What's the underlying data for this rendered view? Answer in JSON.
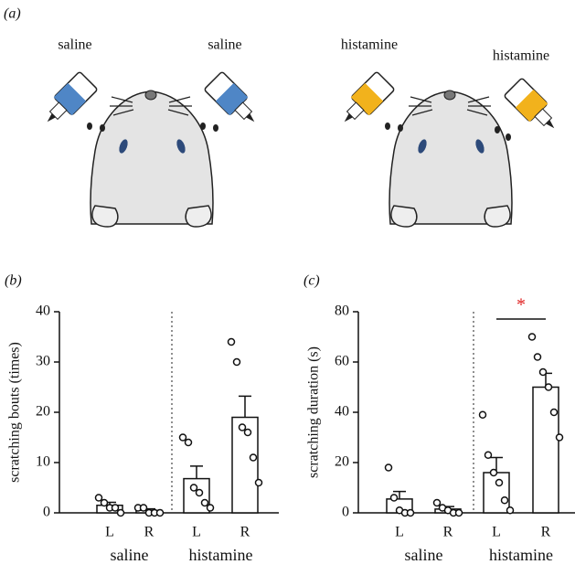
{
  "panel_a": {
    "label": "(a)",
    "labels": [
      "saline",
      "saline",
      "histamine",
      "histamine"
    ]
  },
  "chart_data": [
    {
      "type": "bar",
      "panel": "(b)",
      "ylabel": "scratching bouts (times)",
      "categories": [
        "L",
        "R",
        "L",
        "R"
      ],
      "groups": [
        "saline",
        "histamine"
      ],
      "values": [
        1.5,
        0.5,
        6.8,
        19
      ],
      "errors": [
        0.6,
        0.3,
        2.5,
        4.2
      ],
      "points": [
        [
          3,
          2,
          1,
          1,
          0
        ],
        [
          1,
          1,
          0,
          0,
          0
        ],
        [
          15,
          14,
          5,
          4,
          2,
          1
        ],
        [
          34,
          30,
          17,
          16,
          11,
          6
        ]
      ],
      "ylim": [
        0,
        40
      ],
      "yticks": [
        0,
        10,
        20,
        30,
        40
      ],
      "color": "#ffffff"
    },
    {
      "type": "bar",
      "panel": "(c)",
      "ylabel": "scratching duration (s)",
      "categories": [
        "L",
        "R",
        "L",
        "R"
      ],
      "groups": [
        "saline",
        "histamine"
      ],
      "values": [
        5.5,
        1.5,
        16,
        50
      ],
      "errors": [
        3,
        1,
        6,
        5.5
      ],
      "points": [
        [
          18,
          6,
          1,
          0,
          0
        ],
        [
          4,
          2,
          1,
          0,
          0
        ],
        [
          39,
          23,
          16,
          12,
          5,
          1
        ],
        [
          70,
          62,
          56,
          50,
          40,
          30
        ]
      ],
      "ylim": [
        0,
        80
      ],
      "yticks": [
        0,
        20,
        40,
        60,
        80
      ],
      "color": "#ffffff",
      "annotation": "*"
    }
  ]
}
